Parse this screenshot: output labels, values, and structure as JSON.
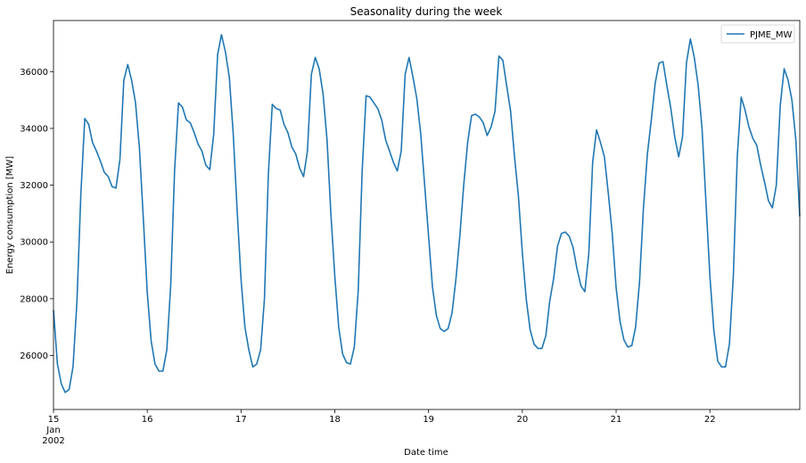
{
  "chart_data": {
    "type": "line",
    "title": "Seasonality during the week",
    "xlabel": "Date time",
    "ylabel": "Energy consumption [MW]",
    "x_range_hours": [
      0,
      191
    ],
    "ylim": [
      24100,
      37800
    ],
    "x_ticks": [
      {
        "hour": 0,
        "label": "15",
        "sub1": "Jan",
        "sub2": "2002"
      },
      {
        "hour": 24,
        "label": "16"
      },
      {
        "hour": 48,
        "label": "17"
      },
      {
        "hour": 72,
        "label": "18"
      },
      {
        "hour": 96,
        "label": "19"
      },
      {
        "hour": 120,
        "label": "20"
      },
      {
        "hour": 144,
        "label": "21"
      },
      {
        "hour": 168,
        "label": "22"
      }
    ],
    "y_ticks": [
      26000,
      28000,
      30000,
      32000,
      34000,
      36000
    ],
    "legend": {
      "position": "top-right"
    },
    "color": "#1f77b4",
    "series": [
      {
        "name": "PJME_MW",
        "values": [
          27600,
          25700,
          25000,
          24700,
          24800,
          25600,
          27900,
          31700,
          34350,
          34150,
          33500,
          33200,
          32850,
          32450,
          32300,
          31950,
          31900,
          32900,
          35700,
          36250,
          35700,
          34900,
          33300,
          30800,
          28200,
          26500,
          25700,
          25450,
          25450,
          26200,
          28500,
          32500,
          34900,
          34750,
          34300,
          34200,
          33850,
          33450,
          33200,
          32700,
          32550,
          33800,
          36600,
          37300,
          36700,
          35800,
          33800,
          31100,
          28700,
          27000,
          26200,
          25600,
          25700,
          26200,
          28000,
          32400,
          34850,
          34700,
          34650,
          34150,
          33850,
          33350,
          33100,
          32600,
          32300,
          33200,
          35900,
          36500,
          36100,
          35200,
          33600,
          31000,
          28800,
          27000,
          26050,
          25750,
          25700,
          26300,
          28300,
          32500,
          35150,
          35100,
          34900,
          34700,
          34300,
          33600,
          33200,
          32800,
          32500,
          33200,
          35900,
          36500,
          35800,
          35050,
          33800,
          32000,
          30200,
          28400,
          27400,
          26950,
          26850,
          26950,
          27500,
          28700,
          30200,
          32000,
          33500,
          34450,
          34500,
          34400,
          34200,
          33750,
          34050,
          34600,
          36550,
          36400,
          35500,
          34600,
          33000,
          31600,
          29600,
          28000,
          26900,
          26400,
          26250,
          26250,
          26700,
          27900,
          28700,
          29850,
          30300,
          30350,
          30200,
          29800,
          29050,
          28450,
          28250,
          29600,
          32800,
          33950,
          33500,
          33000,
          31700,
          30300,
          28400,
          27200,
          26550,
          26300,
          26350,
          27000,
          28600,
          31200,
          33100,
          34300,
          35600,
          36300,
          36350,
          35500,
          34700,
          33700,
          33000,
          33700,
          36300,
          37150,
          36500,
          35500,
          34000,
          31400,
          28800,
          26900,
          25800,
          25600,
          25600,
          26400,
          28800,
          33000,
          35100,
          34650,
          34050,
          33650,
          33400,
          32700,
          32100,
          31450,
          31200,
          32000,
          34800,
          36100,
          35700,
          35000,
          33600,
          30900
        ]
      }
    ]
  }
}
